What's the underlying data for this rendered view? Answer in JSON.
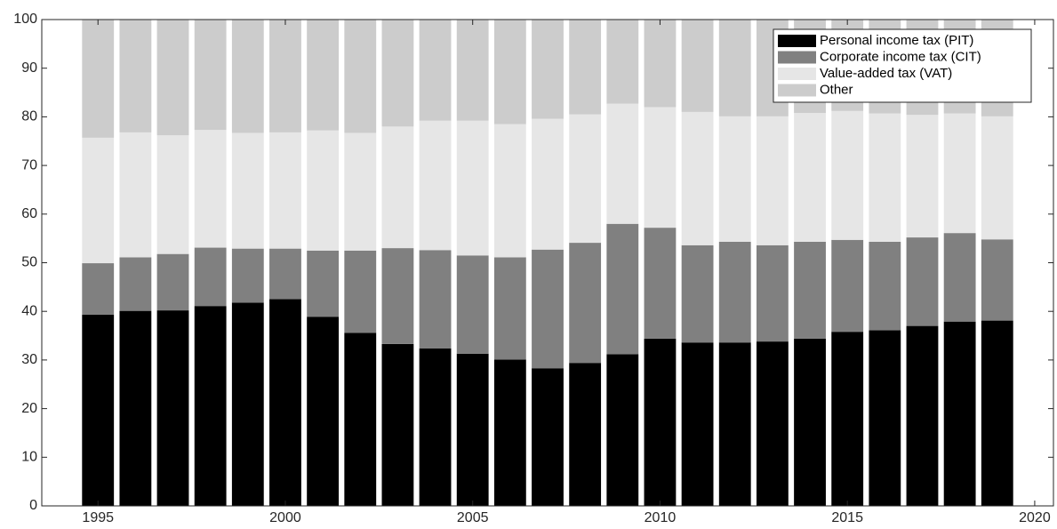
{
  "chart_data": {
    "type": "stacked_bar",
    "x": [
      1995,
      1996,
      1997,
      1998,
      1999,
      2000,
      2001,
      2002,
      2003,
      2004,
      2005,
      2006,
      2007,
      2008,
      2009,
      2010,
      2011,
      2012,
      2013,
      2014,
      2015,
      2016,
      2017,
      2018,
      2019
    ],
    "series": [
      {
        "name": "Personal income tax (PIT)",
        "color": "#000000",
        "values": [
          39.3,
          40.1,
          40.2,
          41.1,
          41.8,
          42.5,
          38.9,
          35.6,
          33.3,
          32.4,
          31.3,
          30.1,
          28.3,
          29.4,
          31.2,
          34.4,
          33.6,
          33.6,
          33.8,
          34.4,
          35.8,
          36.1,
          37.0,
          37.9,
          38.1
        ]
      },
      {
        "name": "Corporate income tax (CIT)",
        "color": "#808080",
        "values": [
          10.6,
          11.0,
          11.6,
          12.0,
          11.1,
          10.4,
          13.6,
          16.9,
          19.7,
          20.2,
          20.2,
          21.0,
          24.4,
          24.7,
          26.8,
          22.8,
          20.0,
          20.7,
          19.8,
          19.9,
          18.9,
          18.2,
          18.2,
          18.2,
          16.7
        ]
      },
      {
        "name": "Value-added tax (VAT)",
        "color": "#e6e6e6",
        "values": [
          25.8,
          25.7,
          24.4,
          24.2,
          23.8,
          23.9,
          24.7,
          24.2,
          25.0,
          26.6,
          27.7,
          27.4,
          26.9,
          26.4,
          24.7,
          24.8,
          27.4,
          25.8,
          26.5,
          26.5,
          26.5,
          26.4,
          25.2,
          24.6,
          25.3
        ]
      },
      {
        "name": "Other",
        "color": "#cccccc",
        "values": [
          24.3,
          23.2,
          23.8,
          22.7,
          23.3,
          23.2,
          22.8,
          23.3,
          22.0,
          20.8,
          20.8,
          21.5,
          20.4,
          19.5,
          17.3,
          18.0,
          19.0,
          19.9,
          19.9,
          19.2,
          18.8,
          19.3,
          19.6,
          19.3,
          19.9
        ]
      }
    ],
    "xlim": [
      1993.5,
      2020.5
    ],
    "xticks": [
      1995,
      2000,
      2005,
      2010,
      2015,
      2020
    ],
    "ylim": [
      0,
      100
    ],
    "yticks": [
      0,
      10,
      20,
      30,
      40,
      50,
      60,
      70,
      80,
      90,
      100
    ],
    "legend": "top-right",
    "grid": false
  }
}
